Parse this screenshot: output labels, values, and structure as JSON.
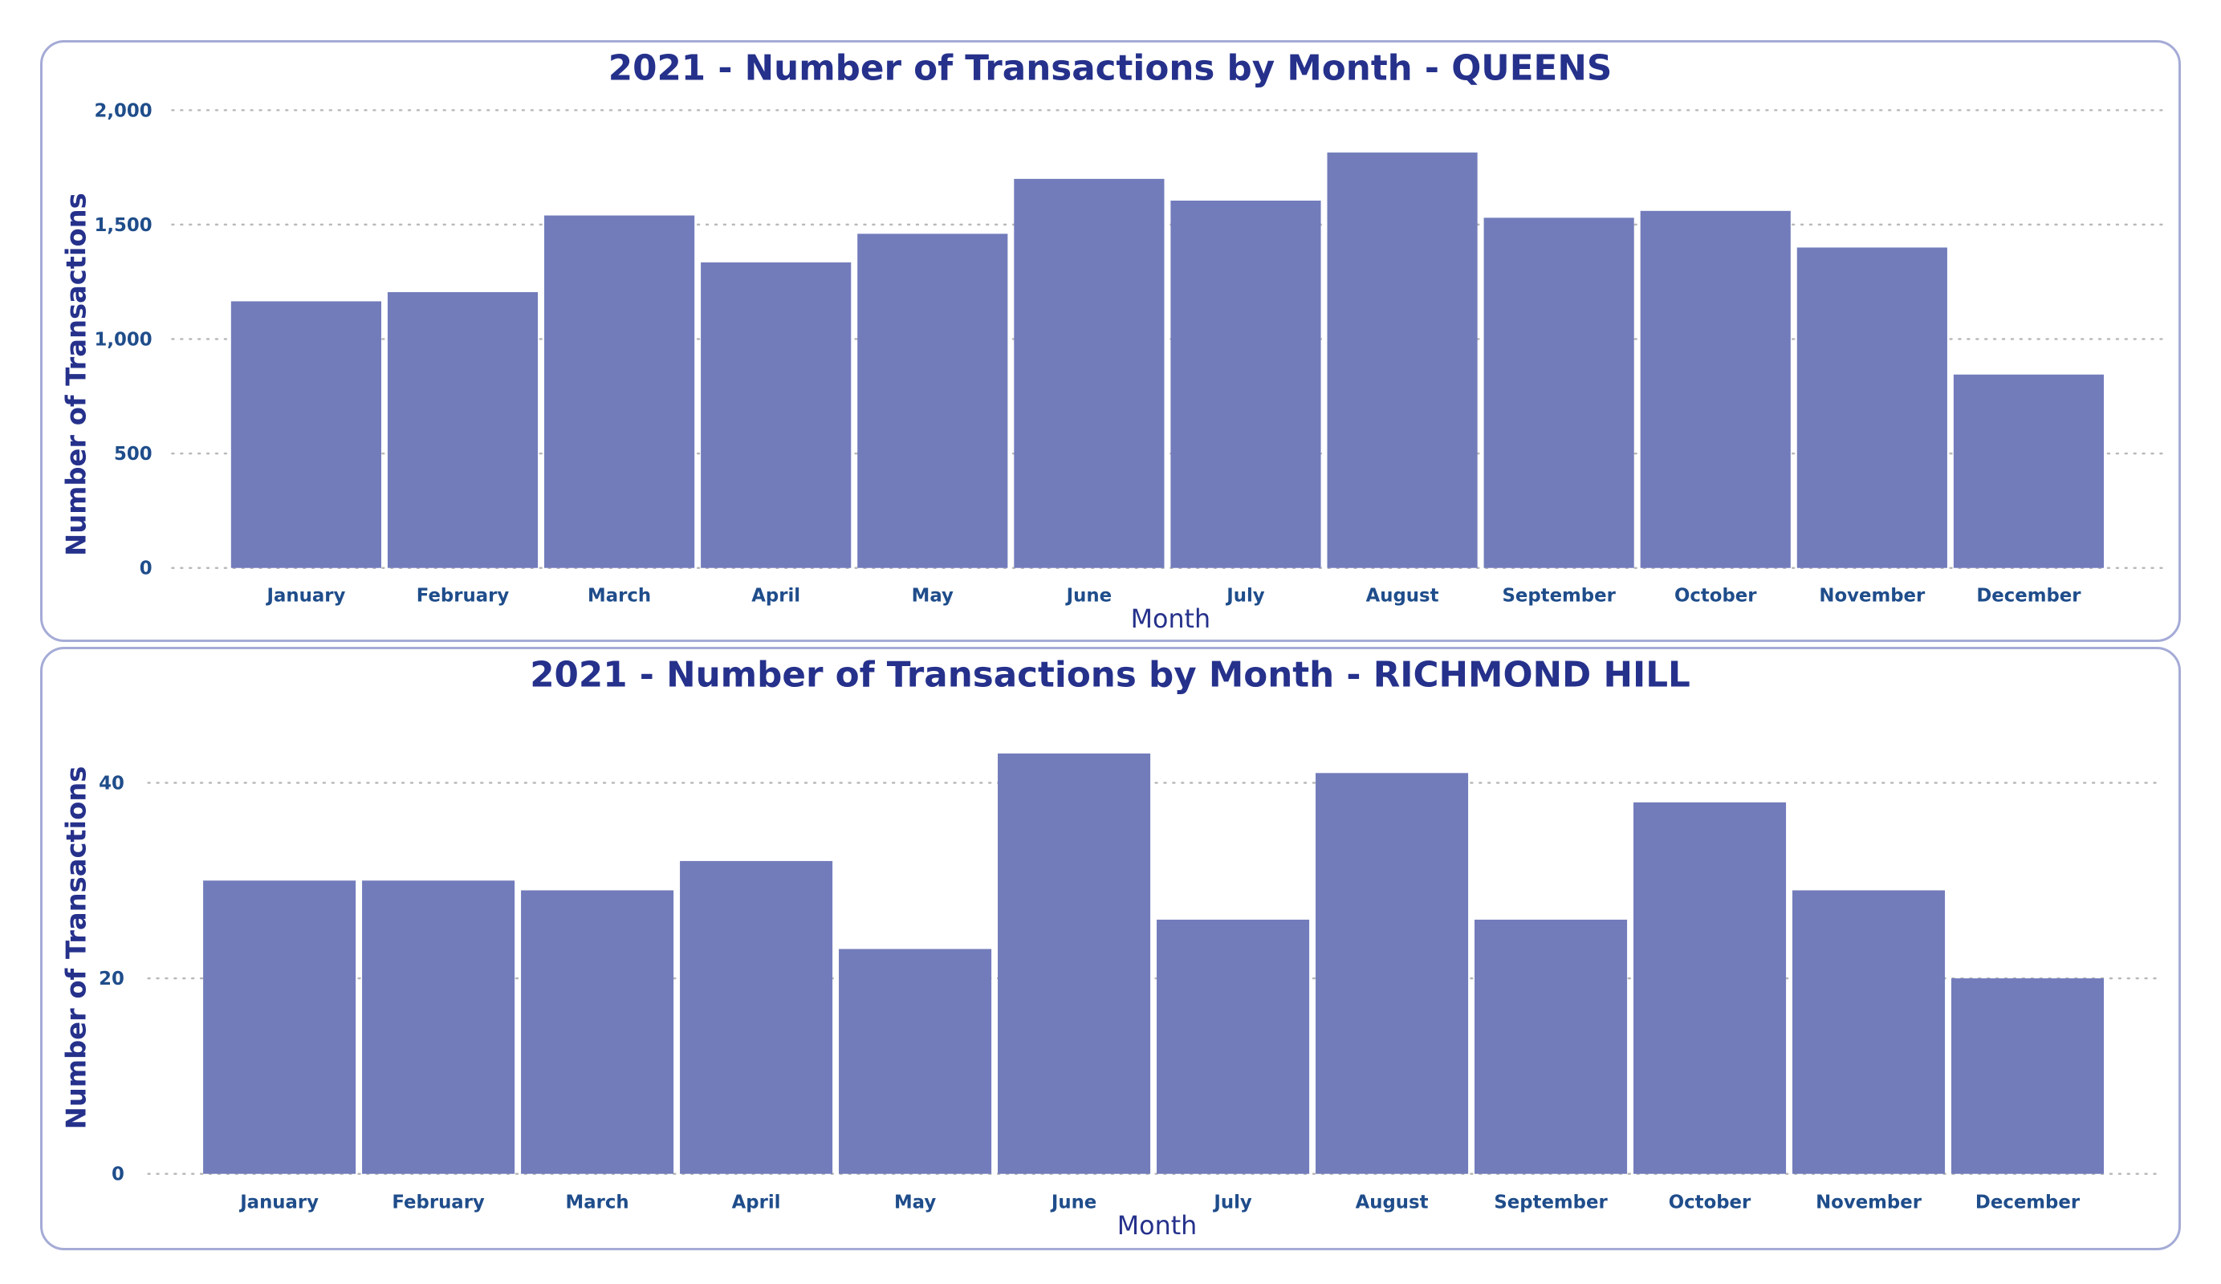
{
  "style": {
    "bar_color": "#727cbb",
    "title_color": "#25318b",
    "tick_color": "#1f4d8b",
    "grid_color": "#b9b9b9",
    "panel_border": "#a5abd6"
  },
  "chart_data": [
    {
      "type": "bar",
      "title": "2021 - Number of Transactions by Month - QUEENS",
      "xlabel": "Month",
      "ylabel": "Number of Transactions",
      "categories": [
        "January",
        "February",
        "March",
        "April",
        "May",
        "June",
        "July",
        "August",
        "September",
        "October",
        "November",
        "December"
      ],
      "values": [
        1165,
        1205,
        1540,
        1335,
        1460,
        1700,
        1605,
        1815,
        1530,
        1560,
        1400,
        845
      ],
      "ylim": [
        0,
        2000
      ],
      "yticks": [
        0,
        500,
        1000,
        1500,
        2000
      ],
      "ytick_labels": [
        "0",
        "500",
        "1,000",
        "1,500",
        "2,000"
      ],
      "grid": true,
      "legend": false
    },
    {
      "type": "bar",
      "title": "2021 - Number of Transactions by Month - RICHMOND HILL",
      "xlabel": "Month",
      "ylabel": "Number of Transactions",
      "categories": [
        "January",
        "February",
        "March",
        "April",
        "May",
        "June",
        "July",
        "August",
        "September",
        "October",
        "November",
        "December"
      ],
      "values": [
        30,
        30,
        29,
        32,
        23,
        43,
        26,
        41,
        26,
        38,
        29,
        20
      ],
      "ylim": [
        0,
        50
      ],
      "yticks": [
        0,
        20,
        40
      ],
      "ytick_labels": [
        "0",
        "20",
        "40"
      ],
      "grid": true,
      "legend": false
    }
  ]
}
